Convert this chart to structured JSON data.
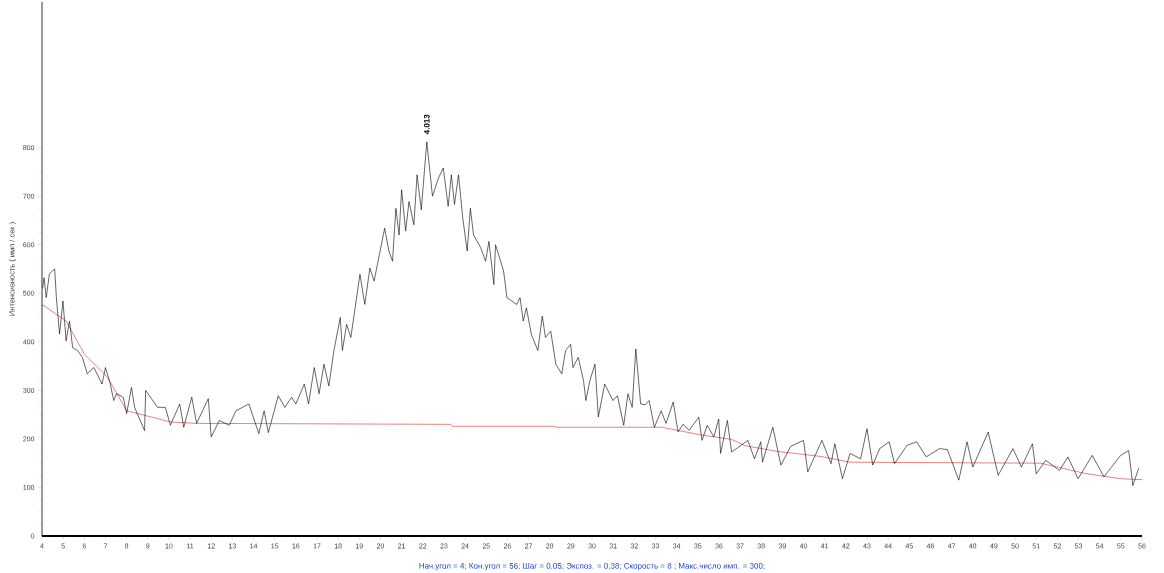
{
  "chart_data": {
    "type": "line",
    "ylabel": "Интенсивность ( имп / сек )",
    "annotations": [
      {
        "text": "4.013",
        "x": 22.19,
        "y": 812
      },
      "Нач.угол = 4;  Кон.угол = 56;  Шаг = 0,05;  Экспоз. = 0,38;  Скорость =  8 ;  Макс.число имп. = 300;"
    ],
    "xlim": [
      4,
      56
    ],
    "ylim": [
      0,
      1100
    ],
    "xticks": [
      4,
      5,
      6,
      7,
      8,
      9,
      10,
      11,
      12,
      13,
      14,
      15,
      16,
      17,
      18,
      19,
      20,
      21,
      22,
      23,
      24,
      25,
      26,
      27,
      28,
      29,
      30,
      31,
      32,
      33,
      34,
      35,
      36,
      37,
      38,
      39,
      40,
      41,
      42,
      43,
      44,
      45,
      46,
      47,
      48,
      49,
      50,
      51,
      52,
      53,
      54,
      55,
      56
    ],
    "yticks": [
      0,
      100,
      200,
      300,
      400,
      500,
      600,
      700,
      800
    ],
    "marker": "none",
    "line_style": "solid",
    "series": [
      {
        "color": "#000000",
        "x": [
          4.03,
          4.1,
          4.2,
          4.35,
          4.6,
          4.68,
          4.83,
          4.99,
          5.14,
          5.3,
          5.45,
          5.68,
          5.91,
          6.14,
          6.45,
          6.84,
          7.0,
          7.23,
          7.39,
          7.53,
          7.84,
          8.0,
          8.23,
          8.38,
          8.85,
          8.9,
          9.46,
          9.83,
          10.07,
          10.51,
          10.7,
          11.08,
          11.31,
          11.86,
          12.0,
          12.38,
          12.85,
          13.17,
          13.78,
          14.25,
          14.5,
          14.7,
          15.17,
          15.48,
          15.8,
          16.0,
          16.4,
          16.6,
          16.87,
          17.1,
          17.33,
          17.56,
          17.8,
          18.1,
          18.2,
          18.4,
          18.6,
          19.03,
          19.26,
          19.5,
          19.7,
          19.95,
          20.2,
          20.4,
          20.57,
          20.73,
          20.88,
          21.0,
          21.19,
          21.35,
          21.58,
          21.73,
          21.93,
          22.19,
          22.46,
          22.74,
          22.97,
          23.2,
          23.35,
          23.5,
          23.69,
          23.89,
          24.1,
          24.25,
          24.4,
          24.74,
          24.97,
          25.13,
          25.36,
          25.44,
          25.82,
          25.98,
          26.44,
          26.6,
          26.75,
          26.9,
          27.13,
          27.44,
          27.65,
          27.8,
          28.05,
          28.29,
          28.57,
          28.75,
          28.99,
          29.1,
          29.35,
          29.6,
          29.71,
          29.9,
          30.14,
          30.3,
          30.6,
          30.99,
          31.2,
          31.5,
          31.7,
          31.9,
          32.07,
          32.3,
          32.5,
          32.7,
          32.95,
          33.27,
          33.5,
          33.84,
          34.07,
          34.3,
          34.6,
          35.05,
          35.2,
          35.45,
          35.76,
          35.99,
          36.08,
          36.4,
          36.6,
          37.06,
          37.37,
          37.68,
          37.98,
          38.06,
          38.55,
          38.93,
          39.4,
          40.0,
          40.2,
          40.87,
          41.3,
          41.48,
          41.84,
          42.2,
          42.7,
          43.0,
          43.27,
          43.6,
          44.05,
          44.3,
          44.9,
          45.35,
          45.8,
          46.43,
          46.8,
          47.34,
          47.73,
          48.0,
          48.73,
          49.2,
          49.9,
          50.3,
          50.82,
          51.0,
          51.45,
          52.1,
          52.5,
          52.98,
          53.65,
          54.2,
          54.99,
          55.37,
          55.57,
          55.84
        ],
        "values": [
          511,
          532,
          491,
          540,
          550,
          491,
          416,
          484,
          402,
          443,
          388,
          382,
          368,
          334,
          347,
          313,
          347,
          313,
          279,
          293,
          286,
          252,
          306,
          265,
          217,
          300,
          265,
          265,
          228,
          272,
          224,
          286,
          232,
          283,
          204,
          238,
          228,
          258,
          272,
          211,
          258,
          213,
          289,
          265,
          286,
          272,
          313,
          272,
          347,
          293,
          354,
          309,
          382,
          450,
          382,
          436,
          409,
          539,
          477,
          552,
          525,
          580,
          634,
          587,
          566,
          675,
          620,
          713,
          628,
          689,
          641,
          744,
          672,
          812,
          700,
          737,
          758,
          679,
          744,
          683,
          744,
          655,
          587,
          675,
          620,
          594,
          566,
          607,
          518,
          600,
          546,
          491,
          477,
          491,
          443,
          470,
          416,
          382,
          453,
          409,
          422,
          354,
          334,
          382,
          395,
          347,
          368,
          320,
          279,
          320,
          354,
          245,
          313,
          279,
          289,
          228,
          293,
          265,
          385,
          272,
          270,
          279,
          224,
          258,
          232,
          276,
          214,
          230,
          218,
          245,
          197,
          228,
          204,
          241,
          170,
          238,
          173,
          187,
          197,
          159,
          194,
          152,
          224,
          146,
          185,
          197,
          132,
          197,
          149,
          190,
          118,
          170,
          159,
          221,
          146,
          180,
          194,
          149,
          187,
          194,
          163,
          180,
          178,
          115,
          194,
          142,
          214,
          125,
          180,
          142,
          190,
          128,
          156,
          135,
          163,
          118,
          166,
          122,
          166,
          176,
          104,
          139
        ]
      },
      {
        "color": "#cc3333",
        "x": [
          4.0,
          5.14,
          6.0,
          7.1,
          8.0,
          8.9,
          10.07,
          11.3,
          23.3,
          23.4,
          28.2,
          28.3,
          33.3,
          35.05,
          36.6,
          37.24,
          38.8,
          40.8,
          42.2,
          51.2,
          53.3,
          55.0,
          56.0
        ],
        "values": [
          477,
          443,
          375,
          327,
          258,
          248,
          235,
          232,
          230,
          226,
          226,
          224,
          224,
          209,
          199,
          186,
          174,
          164,
          152,
          150,
          129,
          118,
          116
        ]
      }
    ]
  }
}
